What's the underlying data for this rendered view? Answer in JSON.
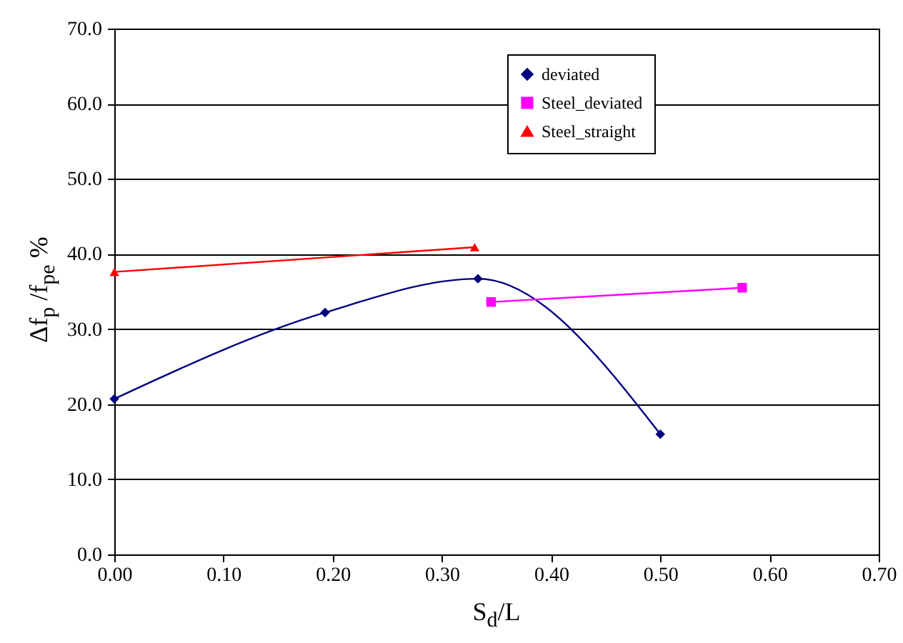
{
  "chart_data": {
    "type": "line",
    "xlabel": "S$_{d}$/L",
    "ylabel": "Δf$_{p}$ /f$_{pe}$ %",
    "series": [
      {
        "name": "deviated",
        "color": "#000080",
        "marker": "diamond",
        "x": [
          0,
          0.193,
          0.333,
          0.5
        ],
        "values": [
          20.7,
          32.2,
          36.7,
          16.0
        ]
      },
      {
        "name": "Steel_deviated",
        "color": "#ff00ff",
        "marker": "square",
        "x": [
          0.345,
          0.575
        ],
        "values": [
          33.6,
          35.5
        ]
      },
      {
        "name": "Steel_straight",
        "color": "#ff0000",
        "marker": "triangle",
        "x": [
          0,
          0.33
        ],
        "values": [
          37.6,
          40.9
        ]
      }
    ],
    "xlim": [
      0,
      0.7
    ],
    "xticks": [
      {
        "value": 0,
        "label": "0.00"
      },
      {
        "value": 0.1,
        "label": "0.10"
      },
      {
        "value": 0.2,
        "label": "0.20"
      },
      {
        "value": 0.3,
        "label": "0.30"
      },
      {
        "value": 0.4,
        "label": "0.40"
      },
      {
        "value": 0.5,
        "label": "0.50"
      },
      {
        "value": 0.6,
        "label": "0.60"
      },
      {
        "value": 0.7,
        "label": "0.70"
      }
    ],
    "ylim": [
      0,
      70
    ],
    "yticks": [
      {
        "value": 0,
        "label": "0.0"
      },
      {
        "value": 10,
        "label": "10.0"
      },
      {
        "value": 20,
        "label": "20.0"
      },
      {
        "value": 30,
        "label": "30.0"
      },
      {
        "value": 40,
        "label": "40.0"
      },
      {
        "value": 50,
        "label": "50.0"
      },
      {
        "value": 60,
        "label": "60.0"
      },
      {
        "value": 70,
        "label": "70.0"
      }
    ],
    "grid": "y",
    "legend": "top right",
    "line_style": "solid"
  }
}
